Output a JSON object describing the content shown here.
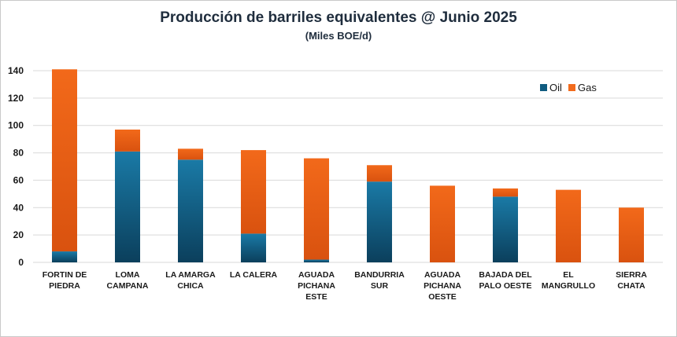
{
  "chart_data": {
    "type": "bar",
    "stacked": true,
    "title": "Producción de barriles equivalentes @ Junio 2025",
    "subtitle": "(Miles BOE/d)",
    "ylim": [
      0,
      140
    ],
    "yticks": [
      0,
      20,
      40,
      60,
      80,
      100,
      120,
      140
    ],
    "grid": true,
    "legend_position": "top-right",
    "categories": [
      [
        "FORTIN DE",
        "PIEDRA"
      ],
      [
        "LOMA",
        "CAMPANA"
      ],
      [
        "LA AMARGA",
        "CHICA"
      ],
      [
        "LA CALERA"
      ],
      [
        "AGUADA",
        "PICHANA",
        "ESTE"
      ],
      [
        "BANDURRIA",
        "SUR"
      ],
      [
        "AGUADA",
        "PICHANA",
        "OESTE"
      ],
      [
        "BAJADA DEL",
        "PALO OESTE"
      ],
      [
        "EL",
        "MANGRULLO"
      ],
      [
        "SIERRA",
        "CHATA"
      ]
    ],
    "series": [
      {
        "name": "Oil",
        "color": "#0f5b80",
        "values": [
          8,
          81,
          75,
          21,
          2,
          59,
          0,
          48,
          0,
          0
        ]
      },
      {
        "name": "Gas",
        "color": "#f26b1d",
        "values": [
          133,
          16,
          8,
          61,
          74,
          12,
          56,
          6,
          53,
          40
        ]
      }
    ]
  }
}
